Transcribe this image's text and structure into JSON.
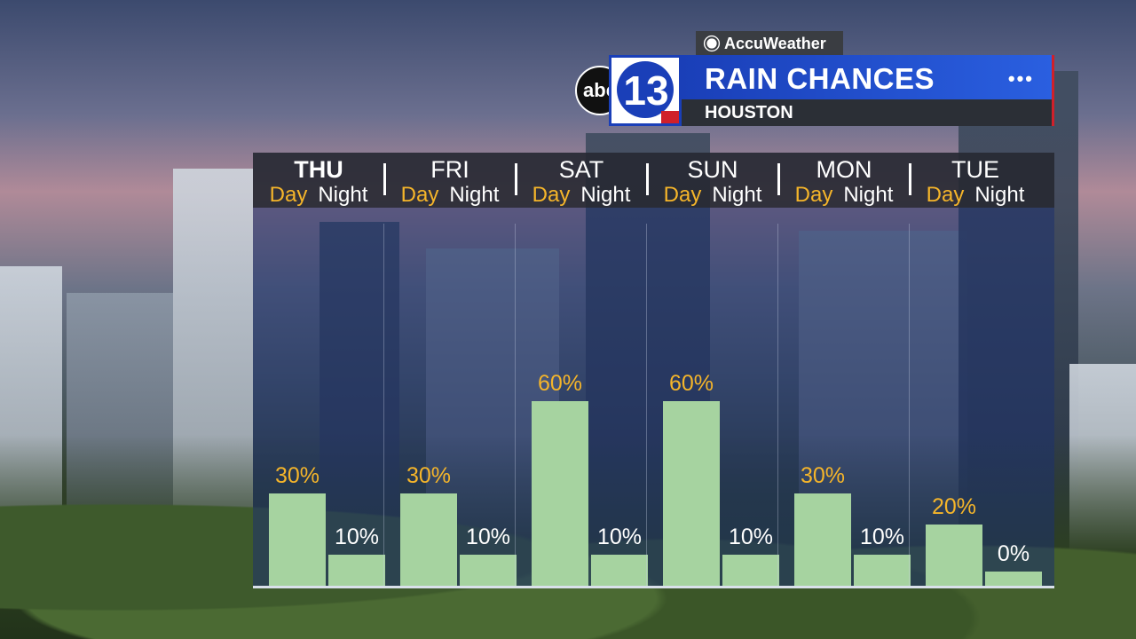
{
  "header": {
    "sponsor": "AccuWeather",
    "title": "RAIN CHANCES",
    "subtitle": "HOUSTON",
    "menu_dots": "•••",
    "logo_network": "abc",
    "logo_channel": "13"
  },
  "colors": {
    "day_value": "#f5b52a",
    "night_value": "#ffffff",
    "bar": "#a6d3a0",
    "title_bar": "#1a3fb8"
  },
  "chart_data": {
    "type": "bar",
    "title": "RAIN CHANCES",
    "subtitle": "HOUSTON",
    "ylim": [
      0,
      100
    ],
    "unit": "%",
    "categories": [
      "THU",
      "FRI",
      "SAT",
      "SUN",
      "MON",
      "TUE"
    ],
    "sub_labels": [
      "Day",
      "Night"
    ],
    "series": [
      {
        "name": "Day",
        "values": [
          30,
          30,
          60,
          60,
          30,
          20
        ]
      },
      {
        "name": "Night",
        "values": [
          10,
          10,
          10,
          10,
          10,
          0
        ]
      }
    ],
    "value_labels": {
      "Day": [
        "30%",
        "30%",
        "60%",
        "60%",
        "30%",
        "20%"
      ],
      "Night": [
        "10%",
        "10%",
        "10%",
        "10%",
        "10%",
        "0%"
      ]
    }
  }
}
